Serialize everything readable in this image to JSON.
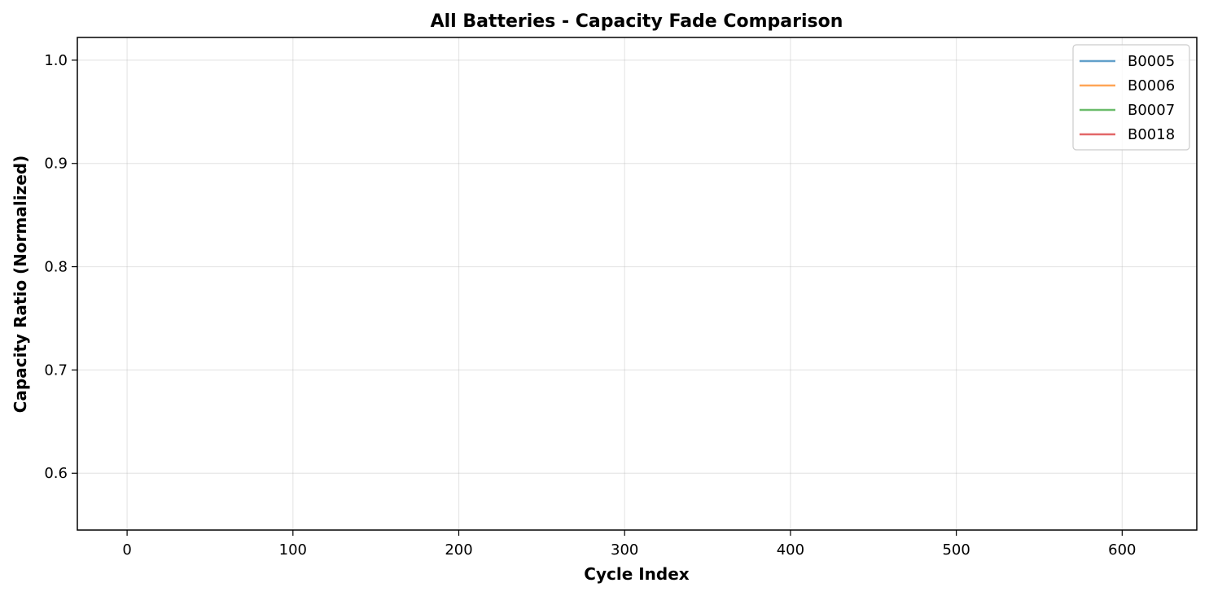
{
  "chart_data": {
    "type": "line",
    "title": "All Batteries - Capacity Fade Comparison",
    "xlabel": "Cycle Index",
    "ylabel": "Capacity Ratio (Normalized)",
    "xlim": [
      -30,
      645
    ],
    "ylim": [
      0.545,
      1.022
    ],
    "xticks": [
      0,
      100,
      200,
      300,
      400,
      500,
      600
    ],
    "yticks": [
      0.6,
      0.7,
      0.8,
      0.9,
      1.0
    ],
    "xtick_labels": [
      "0",
      "100",
      "200",
      "300",
      "400",
      "500",
      "600"
    ],
    "ytick_labels": [
      "0.6",
      "0.7",
      "0.8",
      "0.9",
      "1.0"
    ],
    "grid": true,
    "legend_position": "top-right",
    "series": [
      {
        "name": "B0005",
        "color": "#1f77b4",
        "x": [],
        "y": []
      },
      {
        "name": "B0006",
        "color": "#ff7f0e",
        "x": [],
        "y": []
      },
      {
        "name": "B0007",
        "color": "#2ca02c",
        "x": [],
        "y": []
      },
      {
        "name": "B0018",
        "color": "#d62728",
        "x": [],
        "y": []
      }
    ]
  }
}
